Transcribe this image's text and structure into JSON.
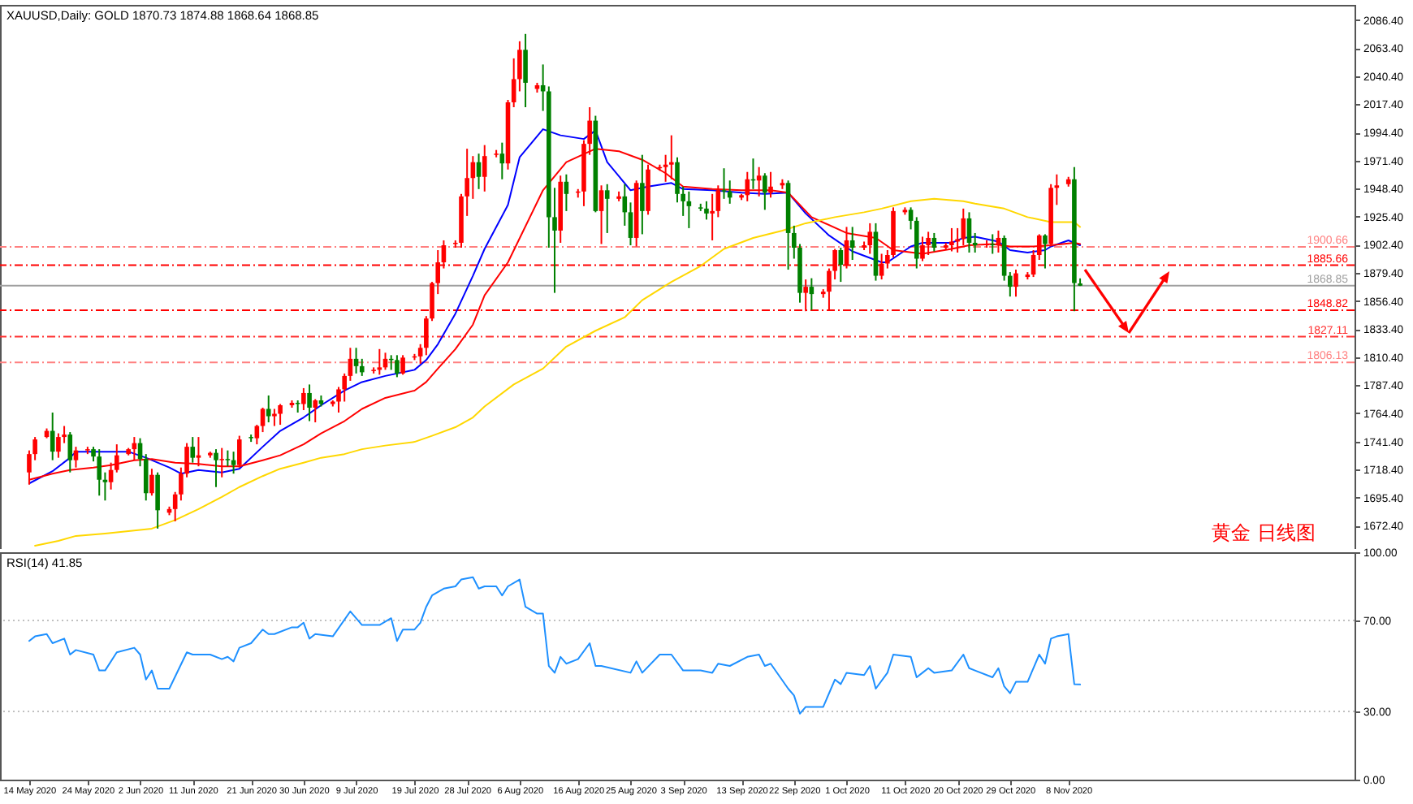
{
  "chart_data": [
    {
      "type": "candlestick",
      "title": "XAUUSD,Daily: GOLD 1870.73 1874.88 1868.64 1868.85",
      "x": [
        "2020-05-14",
        "2020-05-15",
        "2020-05-17",
        "2020-05-18",
        "2020-05-19",
        "2020-05-20",
        "2020-05-21",
        "2020-05-22",
        "2020-05-24",
        "2020-05-25",
        "2020-05-26",
        "2020-05-27",
        "2020-05-28",
        "2020-05-29",
        "2020-05-31",
        "2020-06-01",
        "2020-06-02",
        "2020-06-03",
        "2020-06-04",
        "2020-06-05",
        "2020-06-07",
        "2020-06-08",
        "2020-06-09",
        "2020-06-10",
        "2020-06-11",
        "2020-06-12",
        "2020-06-14",
        "2020-06-15",
        "2020-06-16",
        "2020-06-17",
        "2020-06-18",
        "2020-06-19",
        "2020-06-21",
        "2020-06-22",
        "2020-06-23",
        "2020-06-24",
        "2020-06-25",
        "2020-06-26",
        "2020-06-28",
        "2020-06-29",
        "2020-06-30",
        "2020-07-01",
        "2020-07-02",
        "2020-07-03",
        "2020-07-05",
        "2020-07-06",
        "2020-07-07",
        "2020-07-08",
        "2020-07-09",
        "2020-07-10",
        "2020-07-12",
        "2020-07-13",
        "2020-07-14",
        "2020-07-15",
        "2020-07-16",
        "2020-07-17",
        "2020-07-19",
        "2020-07-20",
        "2020-07-21",
        "2020-07-22",
        "2020-07-23",
        "2020-07-24",
        "2020-07-26",
        "2020-07-27",
        "2020-07-28",
        "2020-07-29",
        "2020-07-30",
        "2020-07-31",
        "2020-08-02",
        "2020-08-03",
        "2020-08-04",
        "2020-08-05",
        "2020-08-06",
        "2020-08-07",
        "2020-08-09",
        "2020-08-10",
        "2020-08-11",
        "2020-08-12",
        "2020-08-13",
        "2020-08-14",
        "2020-08-16",
        "2020-08-17",
        "2020-08-18",
        "2020-08-19",
        "2020-08-20",
        "2020-08-21",
        "2020-08-23",
        "2020-08-24",
        "2020-08-25",
        "2020-08-26",
        "2020-08-27",
        "2020-08-28",
        "2020-08-30",
        "2020-08-31",
        "2020-09-01",
        "2020-09-02",
        "2020-09-03",
        "2020-09-04",
        "2020-09-06",
        "2020-09-07",
        "2020-09-08",
        "2020-09-09",
        "2020-09-10",
        "2020-09-11",
        "2020-09-13",
        "2020-09-14",
        "2020-09-15",
        "2020-09-16",
        "2020-09-17",
        "2020-09-18",
        "2020-09-20",
        "2020-09-21",
        "2020-09-22",
        "2020-09-23",
        "2020-09-24",
        "2020-09-25",
        "2020-09-27",
        "2020-09-28",
        "2020-09-29",
        "2020-09-30",
        "2020-10-01",
        "2020-10-02",
        "2020-10-04",
        "2020-10-05",
        "2020-10-06",
        "2020-10-07",
        "2020-10-08",
        "2020-10-09",
        "2020-10-11",
        "2020-10-12",
        "2020-10-13",
        "2020-10-14",
        "2020-10-15",
        "2020-10-16",
        "2020-10-18",
        "2020-10-19",
        "2020-10-20",
        "2020-10-21",
        "2020-10-22",
        "2020-10-23",
        "2020-10-25",
        "2020-10-26",
        "2020-10-27",
        "2020-10-28",
        "2020-10-29",
        "2020-10-30",
        "2020-11-01",
        "2020-11-02",
        "2020-11-03",
        "2020-11-04",
        "2020-11-05",
        "2020-11-06",
        "2020-11-08",
        "2020-11-09",
        "2020-11-10"
      ],
      "ohlc": [
        [
          1716,
          1734,
          1706,
          1731
        ],
        [
          1731,
          1745,
          1726,
          1743
        ],
        [
          1745,
          1752,
          1744,
          1750
        ],
        [
          1750,
          1765,
          1726,
          1733
        ],
        [
          1733,
          1748,
          1728,
          1745
        ],
        [
          1745,
          1754,
          1740,
          1747
        ],
        [
          1747,
          1749,
          1716,
          1726
        ],
        [
          1726,
          1737,
          1720,
          1734
        ],
        [
          1734,
          1737,
          1731,
          1735
        ],
        [
          1735,
          1737,
          1725,
          1729
        ],
        [
          1729,
          1735,
          1697,
          1710
        ],
        [
          1710,
          1716,
          1693,
          1708
        ],
        [
          1708,
          1724,
          1702,
          1718
        ],
        [
          1718,
          1739,
          1716,
          1730
        ],
        [
          1731,
          1736,
          1730,
          1735
        ],
        [
          1735,
          1745,
          1726,
          1740
        ],
        [
          1740,
          1744,
          1721,
          1727
        ],
        [
          1727,
          1731,
          1693,
          1699
        ],
        [
          1699,
          1719,
          1697,
          1714
        ],
        [
          1714,
          1716,
          1670,
          1685
        ],
        [
          1683,
          1688,
          1681,
          1686
        ],
        [
          1686,
          1700,
          1676,
          1698
        ],
        [
          1698,
          1720,
          1693,
          1715
        ],
        [
          1715,
          1740,
          1712,
          1737
        ],
        [
          1737,
          1745,
          1724,
          1728
        ],
        [
          1728,
          1745,
          1721,
          1730
        ],
        [
          1730,
          1733,
          1728,
          1732
        ],
        [
          1732,
          1735,
          1704,
          1726
        ],
        [
          1726,
          1736,
          1712,
          1727
        ],
        [
          1727,
          1734,
          1721,
          1726
        ],
        [
          1726,
          1733,
          1715,
          1722
        ],
        [
          1722,
          1746,
          1720,
          1743
        ],
        [
          1745,
          1747,
          1741,
          1744
        ],
        [
          1744,
          1755,
          1739,
          1754
        ],
        [
          1754,
          1769,
          1749,
          1768
        ],
        [
          1768,
          1779,
          1757,
          1762
        ],
        [
          1762,
          1768,
          1754,
          1764
        ],
        [
          1764,
          1772,
          1755,
          1771
        ],
        [
          1771,
          1775,
          1769,
          1773
        ],
        [
          1773,
          1775,
          1765,
          1772
        ],
        [
          1772,
          1785,
          1767,
          1781
        ],
        [
          1781,
          1788,
          1758,
          1769
        ],
        [
          1769,
          1776,
          1757,
          1775
        ],
        [
          1775,
          1779,
          1770,
          1772
        ],
        [
          1772,
          1775,
          1770,
          1774
        ],
        [
          1774,
          1786,
          1765,
          1784
        ],
        [
          1784,
          1797,
          1774,
          1795
        ],
        [
          1795,
          1818,
          1791,
          1809
        ],
        [
          1809,
          1818,
          1797,
          1803
        ],
        [
          1803,
          1809,
          1795,
          1798
        ],
        [
          1799,
          1802,
          1797,
          1800
        ],
        [
          1800,
          1817,
          1796,
          1802
        ],
        [
          1802,
          1814,
          1800,
          1809
        ],
        [
          1809,
          1812,
          1800,
          1808
        ],
        [
          1808,
          1812,
          1794,
          1797
        ],
        [
          1797,
          1812,
          1796,
          1810
        ],
        [
          1810,
          1813,
          1808,
          1811
        ],
        [
          1811,
          1821,
          1805,
          1818
        ],
        [
          1818,
          1844,
          1812,
          1842
        ],
        [
          1842,
          1872,
          1840,
          1871
        ],
        [
          1871,
          1898,
          1862,
          1888
        ],
        [
          1888,
          1906,
          1883,
          1902
        ],
        [
          1903,
          1906,
          1900,
          1904
        ],
        [
          1904,
          1944,
          1900,
          1942
        ],
        [
          1942,
          1981,
          1926,
          1957
        ],
        [
          1957,
          1975,
          1940,
          1970
        ],
        [
          1970,
          1977,
          1948,
          1958
        ],
        [
          1958,
          1984,
          1946,
          1975
        ],
        [
          1976,
          1980,
          1974,
          1977
        ],
        [
          1977,
          1986,
          1956,
          1969
        ],
        [
          1969,
          2021,
          1964,
          2019
        ],
        [
          2019,
          2055,
          2015,
          2038
        ],
        [
          2038,
          2069,
          2028,
          2062
        ],
        [
          2062,
          2075,
          2015,
          2035
        ],
        [
          2030,
          2035,
          2027,
          2033
        ],
        [
          2033,
          2050,
          2012,
          2028
        ],
        [
          2028,
          2032,
          1900,
          1925
        ],
        [
          1925,
          1949,
          1863,
          1914
        ],
        [
          1914,
          1959,
          1904,
          1954
        ],
        [
          1954,
          1960,
          1930,
          1944
        ],
        [
          1945,
          1948,
          1941,
          1946
        ],
        [
          1946,
          1988,
          1934,
          1985
        ],
        [
          1985,
          2015,
          1976,
          2004
        ],
        [
          2004,
          2008,
          1929,
          1930
        ],
        [
          1930,
          1951,
          1903,
          1947
        ],
        [
          1947,
          1952,
          1912,
          1940
        ],
        [
          1940,
          1946,
          1938,
          1942
        ],
        [
          1942,
          1952,
          1918,
          1929
        ],
        [
          1929,
          1937,
          1902,
          1908
        ],
        [
          1908,
          1955,
          1901,
          1953
        ],
        [
          1953,
          1976,
          1911,
          1930
        ],
        [
          1930,
          1968,
          1927,
          1964
        ],
        [
          1965,
          1968,
          1963,
          1966
        ],
        [
          1966,
          1976,
          1954,
          1968
        ],
        [
          1968,
          1992,
          1956,
          1970
        ],
        [
          1970,
          1974,
          1937,
          1944
        ],
        [
          1944,
          1950,
          1926,
          1938
        ],
        [
          1938,
          1946,
          1916,
          1934
        ],
        [
          1933,
          1936,
          1930,
          1932
        ],
        [
          1932,
          1938,
          1923,
          1928
        ],
        [
          1928,
          1944,
          1906,
          1930
        ],
        [
          1930,
          1951,
          1925,
          1947
        ],
        [
          1947,
          1965,
          1940,
          1946
        ],
        [
          1946,
          1955,
          1936,
          1941
        ],
        [
          1941,
          1944,
          1939,
          1943
        ],
        [
          1943,
          1962,
          1938,
          1956
        ],
        [
          1956,
          1973,
          1948,
          1955
        ],
        [
          1955,
          1966,
          1942,
          1959
        ],
        [
          1959,
          1961,
          1931,
          1945
        ],
        [
          1945,
          1962,
          1941,
          1950
        ],
        [
          1951,
          1956,
          1948,
          1953
        ],
        [
          1953,
          1955,
          1882,
          1912
        ],
        [
          1912,
          1918,
          1891,
          1900
        ],
        [
          1900,
          1903,
          1855,
          1863
        ],
        [
          1863,
          1874,
          1848,
          1868
        ],
        [
          1868,
          1875,
          1849,
          1862
        ],
        [
          1862,
          1866,
          1859,
          1864
        ],
        [
          1864,
          1883,
          1849,
          1881
        ],
        [
          1881,
          1899,
          1874,
          1898
        ],
        [
          1898,
          1900,
          1872,
          1886
        ],
        [
          1886,
          1917,
          1883,
          1906
        ],
        [
          1906,
          1917,
          1890,
          1900
        ],
        [
          1900,
          1905,
          1898,
          1902
        ],
        [
          1902,
          1920,
          1895,
          1913
        ],
        [
          1913,
          1920,
          1873,
          1877
        ],
        [
          1877,
          1895,
          1874,
          1887
        ],
        [
          1887,
          1898,
          1883,
          1894
        ],
        [
          1894,
          1933,
          1892,
          1930
        ],
        [
          1929,
          1933,
          1927,
          1931
        ],
        [
          1931,
          1933,
          1915,
          1922
        ],
        [
          1922,
          1925,
          1883,
          1891
        ],
        [
          1891,
          1909,
          1889,
          1902
        ],
        [
          1902,
          1913,
          1894,
          1908
        ],
        [
          1908,
          1912,
          1897,
          1900
        ],
        [
          1900,
          1904,
          1898,
          1902
        ],
        [
          1902,
          1916,
          1897,
          1905
        ],
        [
          1905,
          1916,
          1896,
          1907
        ],
        [
          1907,
          1932,
          1902,
          1924
        ],
        [
          1924,
          1929,
          1896,
          1904
        ],
        [
          1904,
          1912,
          1896,
          1902
        ],
        [
          1902,
          1906,
          1900,
          1903
        ],
        [
          1903,
          1911,
          1895,
          1902
        ],
        [
          1902,
          1914,
          1896,
          1908
        ],
        [
          1908,
          1910,
          1873,
          1877
        ],
        [
          1877,
          1880,
          1860,
          1868
        ],
        [
          1868,
          1882,
          1860,
          1879
        ],
        [
          1876,
          1880,
          1874,
          1878
        ],
        [
          1878,
          1898,
          1876,
          1894
        ],
        [
          1894,
          1911,
          1890,
          1910
        ],
        [
          1910,
          1911,
          1883,
          1903
        ],
        [
          1903,
          1952,
          1901,
          1949
        ],
        [
          1949,
          1960,
          1935,
          1951
        ],
        [
          1952,
          1958,
          1950,
          1956
        ],
        [
          1956,
          1966,
          1848,
          1871
        ],
        [
          1870.73,
          1874.88,
          1868.64,
          1868.85
        ]
      ],
      "colors": [
        "#ff0000",
        "#ff0000",
        "#ff0000",
        "#008000",
        "#ff0000",
        "#ff0000",
        "#008000",
        "#ff0000",
        "#ff0000",
        "#008000",
        "#008000",
        "#008000",
        "#ff0000",
        "#ff0000",
        "#ff0000",
        "#ff0000",
        "#008000",
        "#008000",
        "#ff0000",
        "#008000",
        "#ff0000",
        "#ff0000",
        "#ff0000",
        "#ff0000",
        "#008000",
        "#ff0000",
        "#ff0000",
        "#008000",
        "#ff0000",
        "#008000",
        "#008000",
        "#ff0000",
        "#008000",
        "#ff0000",
        "#ff0000",
        "#008000",
        "#ff0000",
        "#ff0000",
        "#ff0000",
        "#008000",
        "#ff0000",
        "#008000",
        "#ff0000",
        "#008000",
        "#ff0000",
        "#ff0000",
        "#ff0000",
        "#ff0000",
        "#008000",
        "#008000",
        "#ff0000",
        "#ff0000",
        "#ff0000",
        "#008000",
        "#008000",
        "#ff0000",
        "#ff0000",
        "#ff0000",
        "#ff0000",
        "#ff0000",
        "#ff0000",
        "#ff0000",
        "#ff0000",
        "#ff0000",
        "#ff0000",
        "#ff0000",
        "#008000",
        "#ff0000",
        "#ff0000",
        "#008000",
        "#ff0000",
        "#ff0000",
        "#ff0000",
        "#008000",
        "#ff0000",
        "#008000",
        "#008000",
        "#008000",
        "#ff0000",
        "#008000",
        "#ff0000",
        "#ff0000",
        "#ff0000",
        "#008000",
        "#ff0000",
        "#008000",
        "#ff0000",
        "#008000",
        "#008000",
        "#ff0000",
        "#008000",
        "#ff0000",
        "#ff0000",
        "#ff0000",
        "#ff0000",
        "#008000",
        "#008000",
        "#008000",
        "#008000",
        "#008000",
        "#ff0000",
        "#ff0000",
        "#008000",
        "#008000",
        "#ff0000",
        "#ff0000",
        "#008000",
        "#ff0000",
        "#008000",
        "#ff0000",
        "#ff0000",
        "#008000",
        "#008000",
        "#008000",
        "#ff0000",
        "#008000",
        "#ff0000",
        "#ff0000",
        "#ff0000",
        "#008000",
        "#ff0000",
        "#008000",
        "#ff0000",
        "#ff0000",
        "#008000",
        "#ff0000",
        "#ff0000",
        "#ff0000",
        "#ff0000",
        "#008000",
        "#008000",
        "#ff0000",
        "#ff0000",
        "#008000",
        "#ff0000",
        "#ff0000",
        "#ff0000",
        "#ff0000",
        "#008000",
        "#008000",
        "#ff0000",
        "#008000",
        "#ff0000",
        "#008000",
        "#008000",
        "#ff0000",
        "#ff0000",
        "#ff0000",
        "#ff0000",
        "#008000",
        "#ff0000",
        "#ff0000",
        "#ff0000",
        "#008000",
        "#008000"
      ],
      "series": [
        {
          "type": "line",
          "color": "#0000ff",
          "x": [
            "2020-05-14",
            "2020-05-18",
            "2020-05-21",
            "2020-05-22",
            "2020-05-27",
            "2020-05-31",
            "2020-06-03",
            "2020-06-07",
            "2020-06-09",
            "2020-06-12",
            "2020-06-16",
            "2020-06-19",
            "2020-06-23",
            "2020-06-26",
            "2020-06-30",
            "2020-07-03",
            "2020-07-07",
            "2020-07-10",
            "2020-07-14",
            "2020-07-19",
            "2020-07-21",
            "2020-07-23",
            "2020-07-26",
            "2020-07-29",
            "2020-07-31",
            "2020-08-04",
            "2020-08-06",
            "2020-08-10",
            "2020-08-13",
            "2020-08-17",
            "2020-08-19",
            "2020-08-21",
            "2020-08-25",
            "2020-08-28",
            "2020-09-01",
            "2020-09-03",
            "2020-09-08",
            "2020-09-13",
            "2020-09-17",
            "2020-09-21",
            "2020-09-24",
            "2020-09-28",
            "2020-10-02",
            "2020-10-07",
            "2020-10-08",
            "2020-10-12",
            "2020-10-14",
            "2020-10-19",
            "2020-10-21",
            "2020-10-23",
            "2020-10-27",
            "2020-10-29",
            "2020-11-01",
            "2020-11-04",
            "2020-11-05",
            "2020-11-08",
            "2020-11-10"
          ],
          "values": [
            1707,
            1717,
            1728,
            1733,
            1733,
            1733,
            1728,
            1720,
            1715,
            1718,
            1716,
            1719,
            1737,
            1750,
            1761,
            1771,
            1783,
            1790,
            1795,
            1800,
            1808,
            1821,
            1846,
            1877,
            1899,
            1935,
            1974,
            1997,
            1992,
            1989,
            1996,
            1970,
            1947,
            1950,
            1953,
            1948,
            1947,
            1945,
            1944,
            1945,
            1928,
            1910,
            1897,
            1888,
            1888,
            1901,
            1904,
            1904,
            1908,
            1909,
            1905,
            1898,
            1896,
            1898,
            1901,
            1906,
            1902
          ]
        },
        {
          "type": "line",
          "color": "#ff0000",
          "x": [
            "2020-05-14",
            "2020-05-18",
            "2020-05-21",
            "2020-05-25",
            "2020-05-28",
            "2020-06-01",
            "2020-06-04",
            "2020-06-08",
            "2020-06-12",
            "2020-06-16",
            "2020-06-19",
            "2020-06-23",
            "2020-06-26",
            "2020-06-30",
            "2020-07-03",
            "2020-07-07",
            "2020-07-10",
            "2020-07-14",
            "2020-07-19",
            "2020-07-21",
            "2020-07-23",
            "2020-07-26",
            "2020-07-29",
            "2020-07-31",
            "2020-08-04",
            "2020-08-10",
            "2020-08-14",
            "2020-08-19",
            "2020-08-23",
            "2020-08-27",
            "2020-08-31",
            "2020-09-03",
            "2020-09-08",
            "2020-09-13",
            "2020-09-18",
            "2020-09-21",
            "2020-09-25",
            "2020-10-01",
            "2020-10-06",
            "2020-10-09",
            "2020-10-14",
            "2020-10-19",
            "2020-10-22",
            "2020-10-26",
            "2020-10-29",
            "2020-11-02",
            "2020-11-05",
            "2020-11-09",
            "2020-11-10"
          ],
          "values": [
            1710,
            1715,
            1718,
            1720,
            1722,
            1726,
            1727,
            1724,
            1723,
            1721,
            1721,
            1726,
            1730,
            1739,
            1748,
            1758,
            1768,
            1777,
            1783,
            1790,
            1801,
            1817,
            1837,
            1861,
            1888,
            1947,
            1970,
            1981,
            1979,
            1972,
            1961,
            1950,
            1948,
            1947,
            1947,
            1945,
            1925,
            1912,
            1908,
            1898,
            1895,
            1899,
            1902,
            1903,
            1901,
            1901,
            1902,
            1904,
            1903
          ]
        },
        {
          "type": "line",
          "color": "#ffd700",
          "x": [
            "2020-05-15",
            "2020-05-19",
            "2020-05-22",
            "2020-05-27",
            "2020-05-31",
            "2020-06-04",
            "2020-06-08",
            "2020-06-12",
            "2020-06-16",
            "2020-06-19",
            "2020-06-23",
            "2020-06-26",
            "2020-06-30",
            "2020-07-03",
            "2020-07-07",
            "2020-07-10",
            "2020-07-14",
            "2020-07-19",
            "2020-07-22",
            "2020-07-26",
            "2020-07-29",
            "2020-07-31",
            "2020-08-05",
            "2020-08-10",
            "2020-08-14",
            "2020-08-19",
            "2020-08-24",
            "2020-08-27",
            "2020-09-01",
            "2020-09-06",
            "2020-09-10",
            "2020-09-15",
            "2020-09-20",
            "2020-09-24",
            "2020-09-29",
            "2020-10-04",
            "2020-10-07",
            "2020-10-12",
            "2020-10-16",
            "2020-10-21",
            "2020-10-23",
            "2020-10-28",
            "2020-11-01",
            "2020-11-05",
            "2020-11-09",
            "2020-11-10"
          ],
          "values": [
            1656,
            1660,
            1664,
            1666,
            1668,
            1670,
            1677,
            1686,
            1696,
            1704,
            1713,
            1719,
            1724,
            1728,
            1731,
            1735,
            1738,
            1741,
            1746,
            1753,
            1761,
            1770,
            1788,
            1801,
            1819,
            1832,
            1843,
            1857,
            1872,
            1885,
            1899,
            1908,
            1914,
            1920,
            1925,
            1929,
            1932,
            1938,
            1940,
            1938,
            1936,
            1932,
            1925,
            1921,
            1921,
            1917
          ]
        }
      ],
      "xlim": [
        "2020-05-09",
        "2020-12-27"
      ],
      "ylim": [
        1653.3,
        2098.8
      ],
      "yticks": [
        {
          "value": 1672.4,
          "label": "1672.40"
        },
        {
          "value": 1695.4,
          "label": "1695.40"
        },
        {
          "value": 1718.4,
          "label": "1718.40"
        },
        {
          "value": 1741.4,
          "label": "1741.40"
        },
        {
          "value": 1764.4,
          "label": "1764.40"
        },
        {
          "value": 1787.4,
          "label": "1787.40"
        },
        {
          "value": 1810.4,
          "label": "1810.40"
        },
        {
          "value": 1833.4,
          "label": "1833.40"
        },
        {
          "value": 1856.4,
          "label": "1856.40"
        },
        {
          "value": 1879.4,
          "label": "1879.40"
        },
        {
          "value": 1902.4,
          "label": "1902.40"
        },
        {
          "value": 1925.4,
          "label": "1925.40"
        },
        {
          "value": 1948.4,
          "label": "1948.40"
        },
        {
          "value": 1971.4,
          "label": "1971.40"
        },
        {
          "value": 1994.4,
          "label": "1994.40"
        },
        {
          "value": 2017.4,
          "label": "2017.40"
        },
        {
          "value": 2040.4,
          "label": "2040.40"
        },
        {
          "value": 2063.4,
          "label": "2063.40"
        },
        {
          "value": 2086.4,
          "label": "2086.40"
        }
      ],
      "ref_lines": [
        {
          "axis": "y",
          "value": 1900.66,
          "label": "1900.66",
          "color": "#ff8080",
          "line_style": "dashed"
        },
        {
          "axis": "y",
          "value": 1885.66,
          "label": "1885.66",
          "color": "#ff0000",
          "line_style": "dashed"
        },
        {
          "axis": "y",
          "value": 1868.85,
          "label": "1868.85",
          "color": "#a0a0a0",
          "line_style": "solid"
        },
        {
          "axis": "y",
          "value": 1848.82,
          "label": "1848.82",
          "color": "#ff0000",
          "line_style": "dashed"
        },
        {
          "axis": "y",
          "value": 1827.11,
          "label": "1827.11",
          "color": "#ff3030",
          "line_style": "dashed"
        },
        {
          "axis": "y",
          "value": 1806.13,
          "label": "1806.13",
          "color": "#ff8080",
          "line_style": "dashed"
        }
      ],
      "annotations": [
        "黄金 日线图"
      ],
      "tick_labels": "y"
    },
    {
      "type": "line",
      "title": "RSI(14) 41.85",
      "color": "#1e90ff",
      "x": [
        "2020-05-14",
        "2020-05-15",
        "2020-05-17",
        "2020-05-18",
        "2020-05-20",
        "2020-05-21",
        "2020-05-22",
        "2020-05-25",
        "2020-05-26",
        "2020-05-27",
        "2020-05-29",
        "2020-06-01",
        "2020-06-02",
        "2020-06-03",
        "2020-06-04",
        "2020-06-05",
        "2020-06-07",
        "2020-06-10",
        "2020-06-11",
        "2020-06-14",
        "2020-06-16",
        "2020-06-17",
        "2020-06-18",
        "2020-06-19",
        "2020-06-21",
        "2020-06-23",
        "2020-06-24",
        "2020-06-25",
        "2020-06-28",
        "2020-06-29",
        "2020-06-30",
        "2020-07-01",
        "2020-07-02",
        "2020-07-05",
        "2020-07-08",
        "2020-07-10",
        "2020-07-13",
        "2020-07-15",
        "2020-07-16",
        "2020-07-17",
        "2020-07-19",
        "2020-07-20",
        "2020-07-21",
        "2020-07-22",
        "2020-07-24",
        "2020-07-26",
        "2020-07-27",
        "2020-07-29",
        "2020-07-30",
        "2020-07-31",
        "2020-08-02",
        "2020-08-03",
        "2020-08-04",
        "2020-08-06",
        "2020-08-07",
        "2020-08-09",
        "2020-08-10",
        "2020-08-11",
        "2020-08-12",
        "2020-08-13",
        "2020-08-14",
        "2020-08-16",
        "2020-08-18",
        "2020-08-19",
        "2020-08-20",
        "2020-08-25",
        "2020-08-26",
        "2020-08-27",
        "2020-08-30",
        "2020-09-01",
        "2020-09-03",
        "2020-09-06",
        "2020-09-08",
        "2020-09-09",
        "2020-09-11",
        "2020-09-14",
        "2020-09-16",
        "2020-09-17",
        "2020-09-18",
        "2020-09-21",
        "2020-09-22",
        "2020-09-23",
        "2020-09-24",
        "2020-09-27",
        "2020-09-29",
        "2020-09-30",
        "2020-10-01",
        "2020-10-04",
        "2020-10-05",
        "2020-10-06",
        "2020-10-08",
        "2020-10-09",
        "2020-10-12",
        "2020-10-13",
        "2020-10-14",
        "2020-10-15",
        "2020-10-16",
        "2020-10-19",
        "2020-10-21",
        "2020-10-22",
        "2020-10-23",
        "2020-10-26",
        "2020-10-27",
        "2020-10-28",
        "2020-10-29",
        "2020-10-30",
        "2020-11-01",
        "2020-11-03",
        "2020-11-04",
        "2020-11-05",
        "2020-11-06",
        "2020-11-08",
        "2020-11-09",
        "2020-11-10"
      ],
      "values": [
        61,
        63,
        64,
        60,
        62,
        55,
        57,
        55,
        48,
        48,
        56,
        58,
        55,
        44,
        48,
        40,
        40,
        56,
        55,
        55,
        53,
        54,
        52,
        58,
        60,
        66,
        64,
        64,
        67,
        67,
        69,
        62,
        64,
        63,
        74,
        68,
        68,
        71,
        61,
        66,
        66,
        69,
        76,
        81,
        84,
        85,
        88,
        89,
        84,
        85,
        85,
        81,
        85,
        88,
        76,
        73,
        73,
        50,
        47,
        54,
        51,
        53,
        60,
        50,
        50,
        47,
        52,
        47,
        55,
        55,
        48,
        48,
        47,
        51,
        50,
        54,
        55,
        50,
        51,
        40,
        37,
        29,
        32,
        32,
        44,
        42,
        47,
        46,
        50,
        40,
        47,
        55,
        54,
        45,
        47,
        49,
        47,
        48,
        55,
        49,
        48,
        45,
        49,
        41,
        38,
        43,
        43,
        55,
        51,
        62,
        63,
        64,
        42,
        41.85
      ],
      "xlim": [
        "2020-05-09",
        "2020-12-27"
      ],
      "ylim": [
        0,
        100
      ],
      "xticks": [
        {
          "value": "2020-05-14",
          "label": "14 May 2020"
        },
        {
          "value": "2020-05-24",
          "label": "24 May 2020"
        },
        {
          "value": "2020-06-02",
          "label": "2 Jun 2020"
        },
        {
          "value": "2020-06-11",
          "label": "11 Jun 2020"
        },
        {
          "value": "2020-06-21",
          "label": "21 Jun 2020"
        },
        {
          "value": "2020-06-30",
          "label": "30 Jun 2020"
        },
        {
          "value": "2020-07-09",
          "label": "9 Jul 2020"
        },
        {
          "value": "2020-07-19",
          "label": "19 Jul 2020"
        },
        {
          "value": "2020-07-28",
          "label": "28 Jul 2020"
        },
        {
          "value": "2020-08-06",
          "label": "6 Aug 2020"
        },
        {
          "value": "2020-08-16",
          "label": "16 Aug 2020"
        },
        {
          "value": "2020-08-25",
          "label": "25 Aug 2020"
        },
        {
          "value": "2020-09-03",
          "label": "3 Sep 2020"
        },
        {
          "value": "2020-09-13",
          "label": "13 Sep 2020"
        },
        {
          "value": "2020-09-22",
          "label": "22 Sep 2020"
        },
        {
          "value": "2020-10-01",
          "label": "1 Oct 2020"
        },
        {
          "value": "2020-10-11",
          "label": "11 Oct 2020"
        },
        {
          "value": "2020-10-20",
          "label": "20 Oct 2020"
        },
        {
          "value": "2020-10-29",
          "label": "29 Oct 2020"
        },
        {
          "value": "2020-11-08",
          "label": "8 Nov 2020"
        }
      ],
      "yticks": [
        {
          "value": 0,
          "label": "0.00"
        },
        {
          "value": 30,
          "label": "30.00"
        },
        {
          "value": 70,
          "label": "70.00"
        },
        {
          "value": 100,
          "label": "100.00"
        }
      ],
      "ref_lines": [
        {
          "axis": "y",
          "value": 70,
          "color": "#c0c0c0",
          "line_style": "dotted"
        },
        {
          "axis": "y",
          "value": 30,
          "color": "#c0c0c0",
          "line_style": "dotted"
        }
      ]
    }
  ]
}
